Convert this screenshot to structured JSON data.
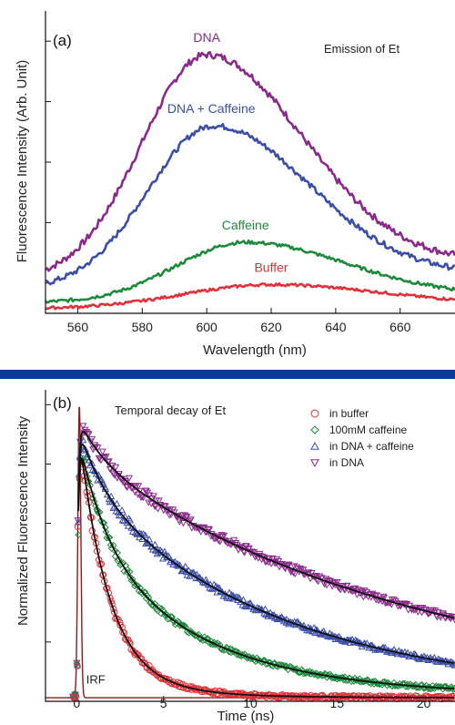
{
  "chart_data": [
    {
      "type": "line",
      "panel_label": "(a)",
      "title": "Emission of Et",
      "xlabel": "Wavelength (nm)",
      "ylabel": "Fluorescence Intensity (Arb. Unit)",
      "xlim": [
        550,
        677
      ],
      "ylim": [
        0,
        1.0
      ],
      "x_ticks": [
        560,
        580,
        600,
        620,
        640,
        660
      ],
      "y_ticks_labeled": false,
      "grid": false,
      "legend": "inline labels above curves",
      "series": [
        {
          "name": "DNA",
          "color": "#8a2a8a",
          "peak_x": 600,
          "peak_y": 0.855,
          "width_left": 30,
          "width_right": 44,
          "baseline_left": 0.11,
          "baseline_right": 0.17
        },
        {
          "name": "DNA + Caffeine",
          "color": "#3b4ea8",
          "peak_x": 602,
          "peak_y": 0.62,
          "width_left": 30,
          "width_right": 44,
          "baseline_left": 0.08,
          "baseline_right": 0.13
        },
        {
          "name": "Caffeine",
          "color": "#1e8a3c",
          "peak_x": 612,
          "peak_y": 0.235,
          "width_left": 32,
          "width_right": 46,
          "baseline_left": 0.035,
          "baseline_right": 0.06
        },
        {
          "name": "Buffer",
          "color": "#e0303a",
          "peak_x": 620,
          "peak_y": 0.095,
          "width_left": 40,
          "width_right": 50,
          "baseline_left": 0.015,
          "baseline_right": 0.03
        }
      ]
    },
    {
      "type": "scatter",
      "panel_label": "(b)",
      "title": "Temporal decay of Et",
      "xlabel": "Time (ns)",
      "ylabel": "Normalized Fluorescence Intensity",
      "xlim": [
        -1.8,
        21.8
      ],
      "ylim": [
        0,
        1.05
      ],
      "x_ticks": [
        0,
        5,
        10,
        15,
        20
      ],
      "y_ticks_labeled": false,
      "grid": false,
      "legend": "top-right",
      "fit_line_color": "#111111",
      "irf": {
        "label": "IRF",
        "color": "#8b1a1a",
        "center": 0.15,
        "width": 0.12
      },
      "series": [
        {
          "name": "in buffer",
          "marker": "circle",
          "color": "#e0303a",
          "components": [
            [
              0.92,
              1.7
            ],
            [
              0.05,
              5
            ]
          ],
          "offset": 0.012
        },
        {
          "name": "100mM caffeine",
          "marker": "diamond",
          "color": "#1e8a3c",
          "components": [
            [
              0.35,
              1.6
            ],
            [
              0.55,
              6.8
            ]
          ],
          "offset": 0.02
        },
        {
          "name": "in DNA + caffeine",
          "marker": "triangle-up",
          "color": "#3b4ea8",
          "components": [
            [
              0.2,
              1.5
            ],
            [
              0.72,
              11.5
            ]
          ],
          "offset": 0.02
        },
        {
          "name": "in DNA",
          "marker": "triangle-down",
          "color": "#8a2a8a",
          "components": [
            [
              0.12,
              1.5
            ],
            [
              0.82,
              19
            ]
          ],
          "offset": 0.02
        }
      ]
    }
  ]
}
